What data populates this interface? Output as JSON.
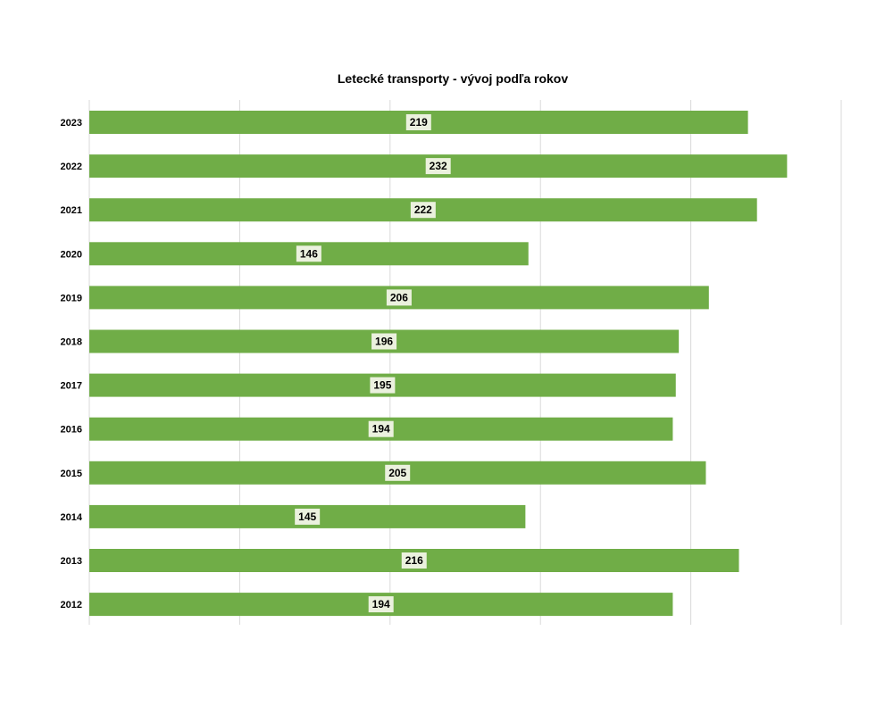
{
  "chart_data": {
    "type": "bar",
    "orientation": "horizontal",
    "title": "Letecké transporty - vývoj podľa rokov",
    "categories": [
      "2023",
      "2022",
      "2021",
      "2020",
      "2019",
      "2018",
      "2017",
      "2016",
      "2015",
      "2014",
      "2013",
      "2012"
    ],
    "values": [
      219,
      232,
      222,
      146,
      206,
      196,
      195,
      194,
      205,
      145,
      216,
      194
    ],
    "xlim": [
      0,
      250
    ],
    "grid": true,
    "legend": "none",
    "data_labels": true,
    "colors": {
      "bar": "#70ad47",
      "grid": "#d9d9d9",
      "label_bg": "#ebf1de"
    }
  }
}
